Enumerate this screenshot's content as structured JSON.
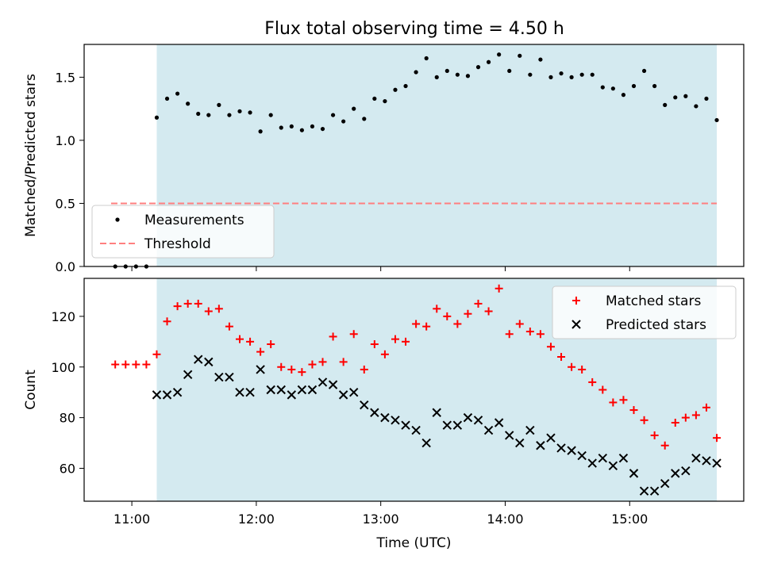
{
  "title": "Flux total observing time = 4.50 h",
  "chart_data": [
    {
      "type": "scatter",
      "title": "Flux total observing time = 4.50 h",
      "ylabel": "Matched/Predicted stars",
      "xlabel": "",
      "xlim": [
        "10:37",
        "15:55"
      ],
      "ylim": [
        0,
        1.76
      ],
      "yticks": [
        0.0,
        0.5,
        1.0,
        1.5
      ],
      "ytick_labels": [
        "0.0",
        "0.5",
        "1.0",
        "1.5"
      ],
      "grid": false,
      "shaded_interval": {
        "start": "11:12",
        "end": "15:42",
        "color": "#d4eaf0"
      },
      "legend": {
        "placement": "lower-left",
        "entries": [
          "Measurements",
          "Threshold"
        ]
      },
      "threshold": {
        "name": "Threshold",
        "value": 0.5,
        "x_start": "10:50",
        "x_end": "15:42",
        "color": "#ff7f7f",
        "style": "dashed"
      },
      "series": [
        {
          "name": "Measurements",
          "marker": "dot",
          "color": "#000000",
          "x": [
            "10:52",
            "10:57",
            "11:02",
            "11:07",
            "11:12",
            "11:17",
            "11:22",
            "11:27",
            "11:32",
            "11:37",
            "11:42",
            "11:47",
            "11:52",
            "11:57",
            "12:02",
            "12:07",
            "12:12",
            "12:17",
            "12:22",
            "12:27",
            "12:32",
            "12:37",
            "12:42",
            "12:47",
            "12:52",
            "12:57",
            "13:02",
            "13:07",
            "13:12",
            "13:17",
            "13:22",
            "13:27",
            "13:32",
            "13:37",
            "13:42",
            "13:47",
            "13:52",
            "13:57",
            "14:02",
            "14:07",
            "14:12",
            "14:17",
            "14:22",
            "14:27",
            "14:32",
            "14:37",
            "14:42",
            "14:47",
            "14:52",
            "14:57",
            "15:02",
            "15:07",
            "15:12",
            "15:17",
            "15:22",
            "15:27",
            "15:32",
            "15:37",
            "15:42"
          ],
          "y": [
            0,
            0,
            0,
            0,
            1.18,
            1.33,
            1.37,
            1.29,
            1.21,
            1.2,
            1.28,
            1.2,
            1.23,
            1.22,
            1.07,
            1.2,
            1.1,
            1.11,
            1.08,
            1.11,
            1.09,
            1.2,
            1.15,
            1.25,
            1.17,
            1.33,
            1.31,
            1.4,
            1.43,
            1.54,
            1.65,
            1.5,
            1.55,
            1.52,
            1.51,
            1.58,
            1.62,
            1.68,
            1.55,
            1.67,
            1.52,
            1.64,
            1.5,
            1.53,
            1.5,
            1.52,
            1.52,
            1.42,
            1.41,
            1.36,
            1.43,
            1.55,
            1.43,
            1.28,
            1.34,
            1.35,
            1.27,
            1.33,
            1.16
          ]
        }
      ]
    },
    {
      "type": "scatter",
      "title": "",
      "xlabel": "Time (UTC)",
      "ylabel": "Count",
      "xlim": [
        "10:37",
        "15:55"
      ],
      "xticks": [
        "11:00",
        "12:00",
        "13:00",
        "14:00",
        "15:00"
      ],
      "ylim": [
        47,
        135
      ],
      "yticks": [
        60,
        80,
        100,
        120
      ],
      "grid": false,
      "shaded_interval": {
        "start": "11:12",
        "end": "15:42",
        "color": "#d4eaf0"
      },
      "legend": {
        "placement": "top-right",
        "entries": [
          "Matched stars",
          "Predicted stars"
        ]
      },
      "series": [
        {
          "name": "Matched stars",
          "marker": "plus",
          "color": "#ff0000",
          "x": [
            "10:52",
            "10:57",
            "11:02",
            "11:07",
            "11:12",
            "11:17",
            "11:22",
            "11:27",
            "11:32",
            "11:37",
            "11:42",
            "11:47",
            "11:52",
            "11:57",
            "12:02",
            "12:07",
            "12:12",
            "12:17",
            "12:22",
            "12:27",
            "12:32",
            "12:37",
            "12:42",
            "12:47",
            "12:52",
            "12:57",
            "13:02",
            "13:07",
            "13:12",
            "13:17",
            "13:22",
            "13:27",
            "13:32",
            "13:37",
            "13:42",
            "13:47",
            "13:52",
            "13:57",
            "14:02",
            "14:07",
            "14:12",
            "14:17",
            "14:22",
            "14:27",
            "14:32",
            "14:37",
            "14:42",
            "14:47",
            "14:52",
            "14:57",
            "15:02",
            "15:07",
            "15:12",
            "15:17",
            "15:22",
            "15:27",
            "15:32",
            "15:37",
            "15:42"
          ],
          "y": [
            101,
            101,
            101,
            101,
            105,
            118,
            124,
            125,
            125,
            122,
            123,
            116,
            111,
            110,
            106,
            109,
            100,
            99,
            98,
            101,
            102,
            112,
            102,
            113,
            99,
            109,
            105,
            111,
            110,
            117,
            116,
            123,
            120,
            117,
            121,
            125,
            122,
            131,
            113,
            117,
            114,
            113,
            108,
            104,
            100,
            99,
            94,
            91,
            86,
            87,
            83,
            79,
            73,
            69,
            78,
            80,
            81,
            84,
            72
          ]
        },
        {
          "name": "Predicted stars",
          "marker": "x",
          "color": "#000000",
          "x": [
            "11:12",
            "11:17",
            "11:22",
            "11:27",
            "11:32",
            "11:37",
            "11:42",
            "11:47",
            "11:52",
            "11:57",
            "12:02",
            "12:07",
            "12:12",
            "12:17",
            "12:22",
            "12:27",
            "12:32",
            "12:37",
            "12:42",
            "12:47",
            "12:52",
            "12:57",
            "13:02",
            "13:07",
            "13:12",
            "13:17",
            "13:22",
            "13:27",
            "13:32",
            "13:37",
            "13:42",
            "13:47",
            "13:52",
            "13:57",
            "14:02",
            "14:07",
            "14:12",
            "14:17",
            "14:22",
            "14:27",
            "14:32",
            "14:37",
            "14:42",
            "14:47",
            "14:52",
            "14:57",
            "15:02",
            "15:07",
            "15:12",
            "15:17",
            "15:22",
            "15:27",
            "15:32",
            "15:37",
            "15:42"
          ],
          "y": [
            89,
            89,
            90,
            97,
            103,
            102,
            96,
            96,
            90,
            90,
            99,
            91,
            91,
            89,
            91,
            91,
            94,
            93,
            89,
            90,
            85,
            82,
            80,
            79,
            77,
            75,
            70,
            82,
            77,
            77,
            80,
            79,
            75,
            78,
            73,
            70,
            75,
            69,
            72,
            68,
            67,
            65,
            62,
            64,
            61,
            64,
            58,
            51,
            51,
            54,
            58,
            59,
            64,
            63,
            62
          ]
        }
      ]
    }
  ]
}
